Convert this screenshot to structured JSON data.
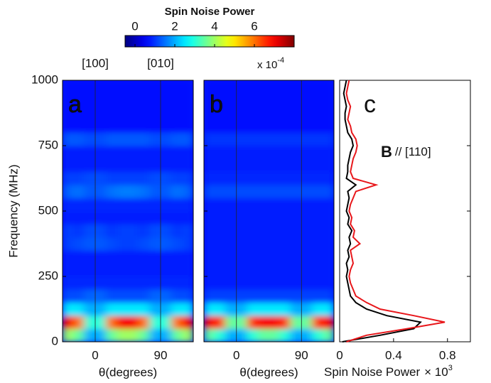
{
  "chart_data": [
    {
      "type": "heatmap",
      "panel_label": "a",
      "colorbar": {
        "title": "Spin Noise Power",
        "zlim": [
          -0.5,
          8
        ],
        "ticks": [
          0,
          2,
          4,
          6
        ],
        "multiplier": {
          "base": "x 10",
          "exponent": "-4"
        }
      },
      "top_labels": [
        {
          "value": 0,
          "label": "[100]"
        },
        {
          "value": 90,
          "label": "[010]"
        }
      ],
      "xlabel": "θ(degrees)",
      "ylabel": "Frequency (MHz)",
      "xlim": [
        -45,
        135
      ],
      "xticks": [
        0,
        90
      ],
      "ylim": [
        0,
        1000
      ],
      "yticks": [
        0,
        250,
        500,
        750,
        1000
      ],
      "x": [
        -37.5,
        -22.5,
        -7.5,
        7.5,
        22.5,
        37.5,
        52.5,
        67.5,
        82.5,
        97.5,
        112.5,
        127.5
      ],
      "y": [
        25,
        75,
        125,
        175,
        225,
        275,
        325,
        375,
        425,
        475,
        525,
        575,
        625,
        675,
        725,
        775,
        825,
        875,
        925,
        975
      ],
      "z": [
        [
          4,
          3.5,
          2,
          2,
          3.5,
          4,
          4,
          3.5,
          2,
          2,
          3.5,
          4
        ],
        [
          7,
          6,
          3,
          3,
          6,
          7,
          7,
          6,
          3,
          3,
          6,
          7
        ],
        [
          2.5,
          2.5,
          2,
          2,
          2.5,
          2.5,
          2.5,
          2.5,
          2,
          2,
          2.5,
          2.5
        ],
        [
          1.2,
          1.2,
          1.4,
          1.4,
          1.2,
          1.2,
          1.2,
          1.2,
          1.4,
          1.4,
          1.2,
          1.2
        ],
        [
          0.9,
          0.9,
          0.9,
          0.9,
          0.9,
          0.9,
          0.9,
          0.9,
          0.9,
          0.9,
          0.9,
          0.9
        ],
        [
          0.8,
          0.8,
          0.8,
          0.8,
          0.8,
          0.8,
          0.8,
          0.8,
          0.8,
          0.8,
          0.8,
          0.8
        ],
        [
          0.8,
          0.8,
          0.8,
          0.8,
          0.8,
          0.8,
          0.8,
          0.8,
          0.8,
          0.8,
          0.8,
          0.8
        ],
        [
          1.1,
          1.2,
          1.3,
          1.3,
          1.2,
          1.1,
          1.1,
          1.2,
          1.3,
          1.3,
          1.2,
          1.1
        ],
        [
          1.1,
          1,
          1.2,
          1.2,
          1,
          1.1,
          1.1,
          1,
          1.2,
          1.2,
          1,
          1.1
        ],
        [
          0.8,
          0.8,
          0.8,
          0.8,
          0.8,
          0.8,
          0.8,
          0.8,
          0.8,
          0.8,
          0.8,
          0.8
        ],
        [
          0.9,
          0.9,
          0.9,
          0.9,
          0.9,
          0.9,
          0.9,
          0.9,
          0.9,
          0.9,
          0.9,
          0.9
        ],
        [
          1.4,
          1.5,
          1.3,
          1.3,
          1.5,
          1.6,
          1.6,
          1.5,
          1.3,
          1.3,
          1.5,
          1.4
        ],
        [
          1.1,
          1.1,
          1.2,
          1.2,
          1.1,
          1.1,
          1.1,
          1.1,
          1.2,
          1.2,
          1.1,
          1.1
        ],
        [
          0.8,
          0.8,
          0.8,
          0.8,
          0.8,
          0.8,
          0.8,
          0.8,
          0.8,
          0.8,
          0.8,
          0.8
        ],
        [
          0.8,
          0.8,
          0.8,
          0.8,
          0.8,
          0.8,
          0.8,
          0.8,
          0.8,
          0.8,
          0.8,
          0.8
        ],
        [
          1.3,
          1.3,
          1.2,
          1.2,
          1.3,
          1.3,
          1.3,
          1.3,
          1.2,
          1.2,
          1.3,
          1.3
        ],
        [
          0.7,
          0.7,
          0.7,
          0.7,
          0.7,
          0.7,
          0.7,
          0.7,
          0.7,
          0.7,
          0.7,
          0.7
        ],
        [
          0.7,
          0.7,
          0.7,
          0.7,
          0.7,
          0.7,
          0.7,
          0.7,
          0.7,
          0.7,
          0.7,
          0.7
        ],
        [
          0.7,
          0.7,
          0.7,
          0.7,
          0.7,
          0.7,
          0.7,
          0.7,
          0.7,
          0.7,
          0.7,
          0.7
        ],
        [
          0.7,
          0.7,
          0.7,
          0.7,
          0.7,
          0.7,
          0.7,
          0.7,
          0.7,
          0.7,
          0.7,
          0.7
        ]
      ]
    },
    {
      "type": "heatmap",
      "panel_label": "b",
      "xlabel": "θ(degrees)",
      "xlim": [
        -45,
        135
      ],
      "xticks": [
        0,
        90
      ],
      "ylim": [
        0,
        1000
      ],
      "yticks": [
        0,
        250,
        500,
        750,
        1000
      ],
      "x": [
        -37.5,
        -22.5,
        -7.5,
        7.5,
        22.5,
        37.5,
        52.5,
        67.5,
        82.5,
        97.5,
        112.5,
        127.5
      ],
      "y": [
        25,
        75,
        125,
        175,
        225,
        275,
        325,
        375,
        425,
        475,
        525,
        575,
        625,
        675,
        725,
        775,
        825,
        875,
        925,
        975
      ],
      "z": [
        [
          3.5,
          3,
          2,
          2,
          3,
          3.5,
          3.5,
          3,
          2,
          2,
          3,
          3.5
        ],
        [
          7,
          6.5,
          3.5,
          3.5,
          6.5,
          7,
          7,
          6.5,
          3.5,
          3.5,
          6.5,
          7
        ],
        [
          2.5,
          2.5,
          2,
          2,
          2.5,
          2.5,
          2.5,
          2.5,
          2,
          2,
          2.5,
          2.5
        ],
        [
          1.1,
          1.1,
          1.1,
          1.1,
          1.1,
          1.1,
          1.1,
          1.1,
          1.1,
          1.1,
          1.1,
          1.1
        ],
        [
          0.8,
          0.8,
          0.8,
          0.8,
          0.8,
          0.8,
          0.8,
          0.8,
          0.8,
          0.8,
          0.8,
          0.8
        ],
        [
          0.8,
          0.8,
          0.8,
          0.8,
          0.8,
          0.8,
          0.8,
          0.8,
          0.8,
          0.8,
          0.8,
          0.8
        ],
        [
          0.8,
          0.8,
          0.8,
          0.8,
          0.8,
          0.8,
          0.8,
          0.8,
          0.8,
          0.8,
          0.8,
          0.8
        ],
        [
          0.8,
          0.8,
          0.8,
          0.8,
          0.8,
          0.8,
          0.8,
          0.8,
          0.8,
          0.8,
          0.8,
          0.8
        ],
        [
          0.8,
          0.8,
          0.8,
          0.8,
          0.8,
          0.8,
          0.8,
          0.8,
          0.8,
          0.8,
          0.8,
          0.8
        ],
        [
          0.8,
          0.8,
          0.8,
          0.8,
          0.8,
          0.8,
          0.8,
          0.8,
          0.8,
          0.8,
          0.8,
          0.8
        ],
        [
          0.8,
          0.8,
          0.8,
          0.8,
          0.8,
          0.8,
          0.8,
          0.8,
          0.8,
          0.8,
          0.8,
          0.8
        ],
        [
          1.2,
          1.2,
          1.2,
          1.2,
          1.2,
          1.2,
          1.2,
          1.2,
          1.2,
          1.2,
          1.2,
          1.2
        ],
        [
          0.9,
          0.9,
          0.9,
          0.9,
          0.9,
          0.9,
          0.9,
          0.9,
          0.9,
          0.9,
          0.9,
          0.9
        ],
        [
          0.8,
          0.8,
          0.8,
          0.8,
          0.8,
          0.8,
          0.8,
          0.8,
          0.8,
          0.8,
          0.8,
          0.8
        ],
        [
          0.8,
          0.8,
          0.8,
          0.8,
          0.8,
          0.8,
          0.8,
          0.8,
          0.8,
          0.8,
          0.8,
          0.8
        ],
        [
          1,
          1,
          1,
          1,
          1,
          1,
          1,
          1,
          1,
          1,
          1,
          1
        ],
        [
          0.7,
          0.7,
          0.7,
          0.7,
          0.7,
          0.7,
          0.7,
          0.7,
          0.7,
          0.7,
          0.7,
          0.7
        ],
        [
          0.7,
          0.7,
          0.7,
          0.7,
          0.7,
          0.7,
          0.7,
          0.7,
          0.7,
          0.7,
          0.7,
          0.7
        ],
        [
          0.7,
          0.7,
          0.7,
          0.7,
          0.7,
          0.7,
          0.7,
          0.7,
          0.7,
          0.7,
          0.7,
          0.7
        ],
        [
          0.7,
          0.7,
          0.7,
          0.7,
          0.7,
          0.7,
          0.7,
          0.7,
          0.7,
          0.7,
          0.7,
          0.7
        ]
      ]
    },
    {
      "type": "line",
      "panel_label": "c",
      "annotation": {
        "bold": "B",
        "rest": "// [110]"
      },
      "xlabel": "Spin Noise Power",
      "xlabel_multiplier": {
        "base": "× 10",
        "exponent": "3"
      },
      "xlim": [
        0,
        0.97
      ],
      "xticks": [
        0,
        0.4,
        0.8
      ],
      "ylim": [
        0,
        1000
      ],
      "yticks": [
        0,
        250,
        500,
        750,
        1000
      ],
      "y": [
        0,
        25,
        50,
        75,
        100,
        125,
        150,
        175,
        200,
        225,
        250,
        275,
        300,
        325,
        350,
        375,
        400,
        425,
        450,
        475,
        500,
        525,
        550,
        575,
        600,
        625,
        650,
        675,
        700,
        725,
        750,
        775,
        800,
        825,
        850,
        875,
        900,
        925,
        950,
        975,
        1000
      ],
      "series": [
        {
          "color": "#000000",
          "values": [
            0.02,
            0.3,
            0.55,
            0.6,
            0.35,
            0.2,
            0.12,
            0.08,
            0.07,
            0.06,
            0.05,
            0.06,
            0.05,
            0.07,
            0.06,
            0.08,
            0.07,
            0.09,
            0.06,
            0.07,
            0.05,
            0.06,
            0.07,
            0.06,
            0.12,
            0.05,
            0.06,
            0.06,
            0.07,
            0.08,
            0.1,
            0.09,
            0.06,
            0.05,
            0.04,
            0.04,
            0.05,
            0.04,
            0.03,
            0.04,
            0.05
          ]
        },
        {
          "color": "#e8171b",
          "values": [
            0.05,
            0.2,
            0.5,
            0.78,
            0.55,
            0.3,
            0.2,
            0.12,
            0.1,
            0.08,
            0.07,
            0.08,
            0.1,
            0.09,
            0.08,
            0.15,
            0.1,
            0.11,
            0.08,
            0.09,
            0.07,
            0.08,
            0.1,
            0.12,
            0.27,
            0.1,
            0.08,
            0.09,
            0.1,
            0.12,
            0.13,
            0.12,
            0.09,
            0.08,
            0.06,
            0.07,
            0.08,
            0.06,
            0.05,
            0.06,
            0.07
          ]
        }
      ]
    }
  ]
}
